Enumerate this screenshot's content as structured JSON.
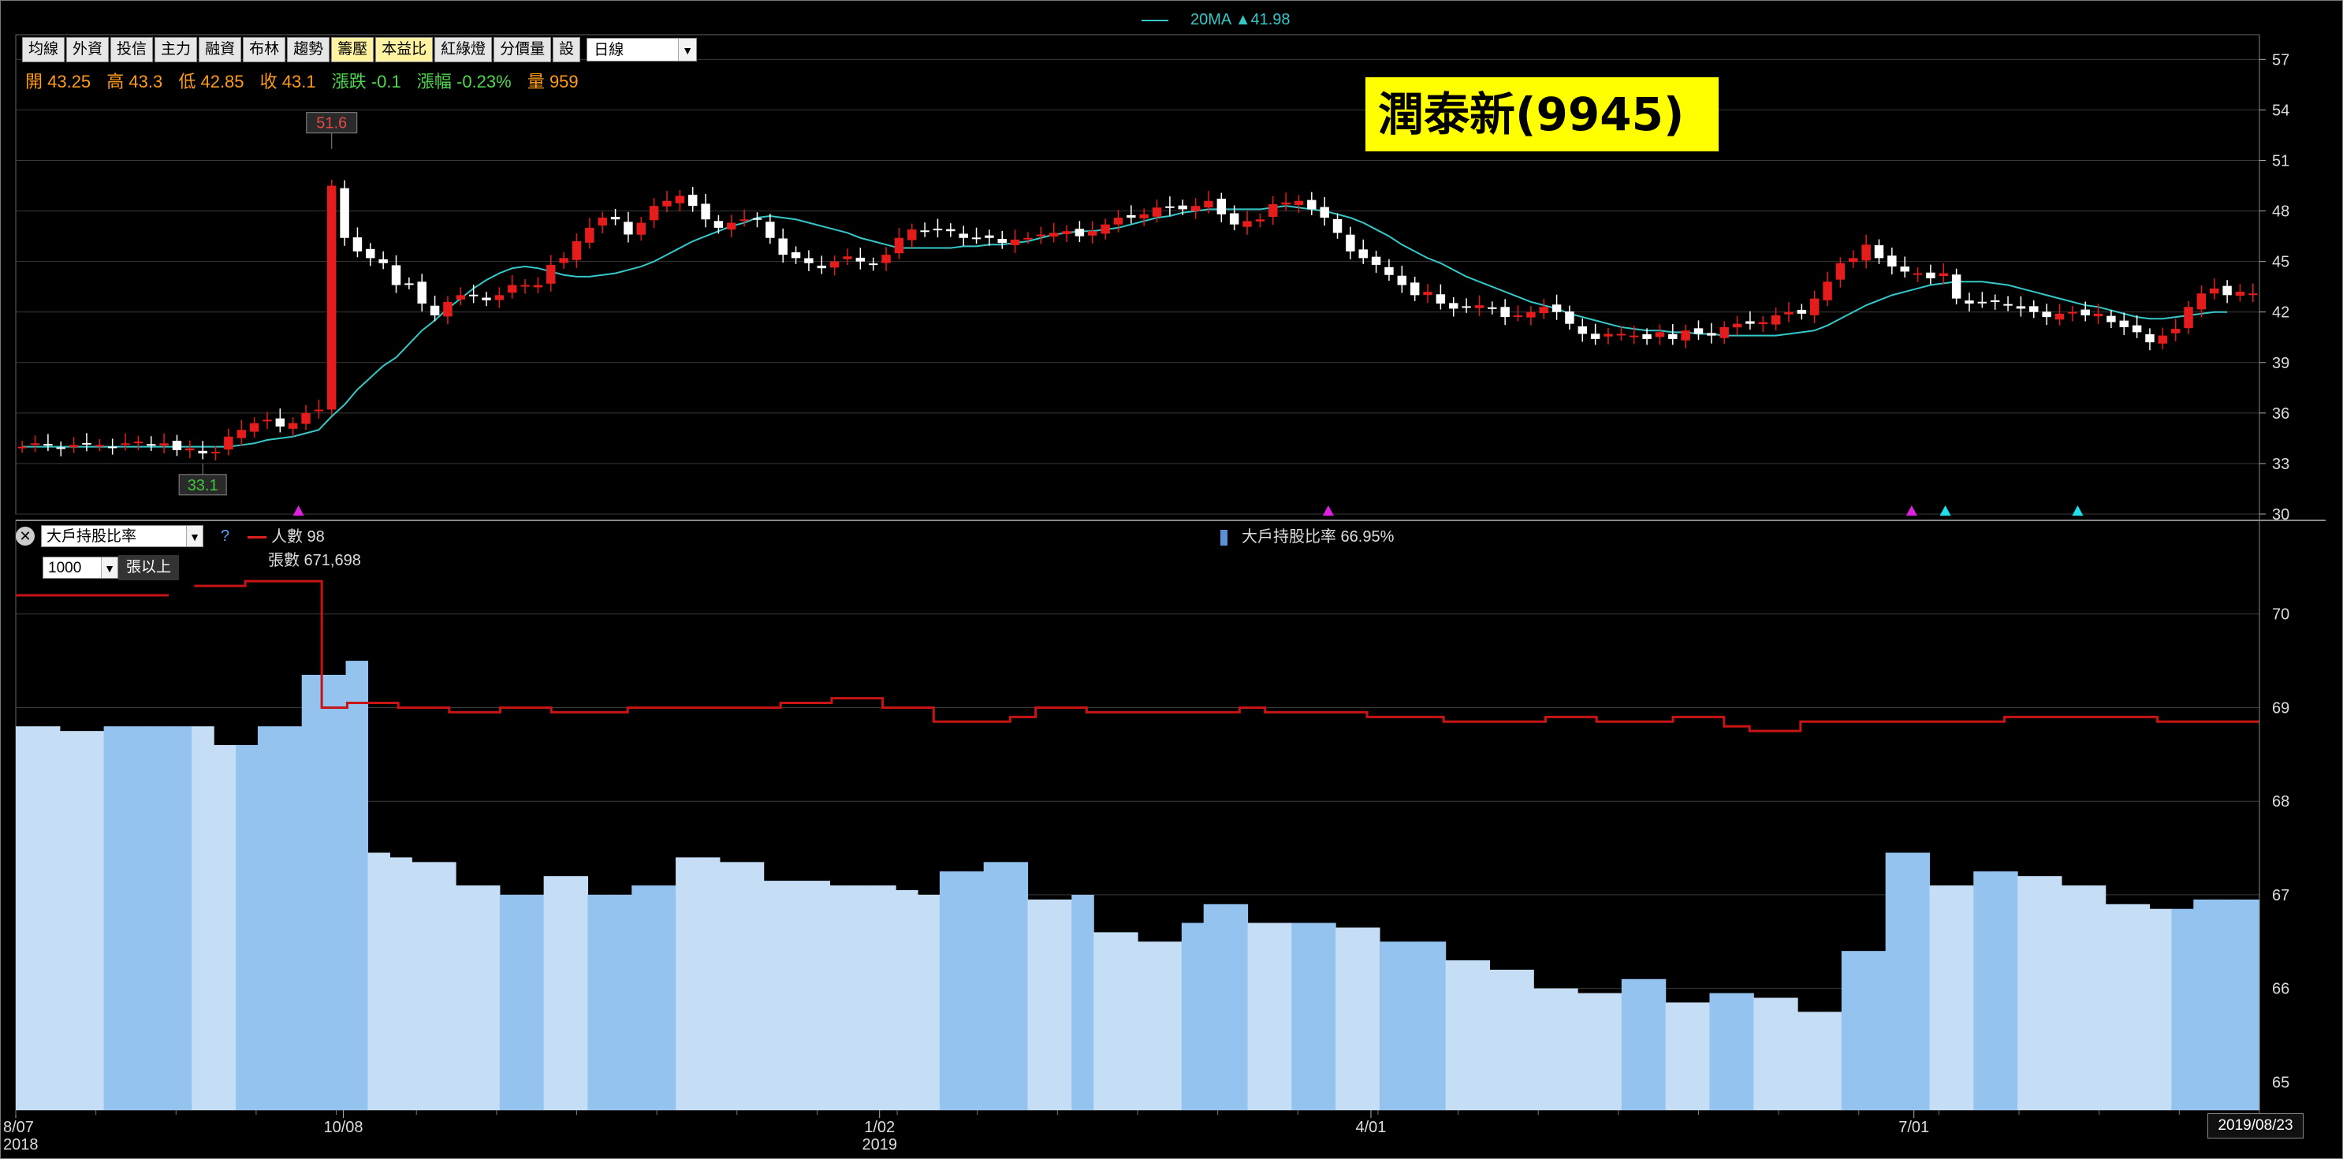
{
  "toolbar": {
    "buttons": [
      "均線",
      "外資",
      "投信",
      "主力",
      "融資",
      "布林",
      "趨勢",
      "籌壓",
      "本益比",
      "紅綠燈",
      "分價量",
      "設"
    ],
    "highlighted": [
      7,
      8
    ],
    "period_select": "日線"
  },
  "ohlc": {
    "open": "開 43.25",
    "high": "高 43.3",
    "low": "低 42.85",
    "close": "收 43.1",
    "change": "漲跌 -0.1",
    "pct": "漲幅 -0.23%",
    "volume": "量 959"
  },
  "ma_legend": "20MA ▲41.98",
  "stock_title": "潤泰新(9945)",
  "max_label": "51.6",
  "min_label": "33.1",
  "lower_panel": {
    "indicator_select": "大戶持股比率",
    "help": "?",
    "threshold_select": "1000",
    "threshold_unit": "張以上",
    "people_legend": "人數 98",
    "shares_legend": "張數 671,698",
    "ratio_legend": "大戶持股比率 66.95%"
  },
  "current_date": "2019/08/23",
  "colors": {
    "up": "#e51c1c",
    "down": "#ffffff",
    "ma": "#36c8c8",
    "bar_light": "#c5ddf5",
    "bar_mid": "#94c3f0",
    "people_line": "#c81414",
    "marker_magenta": "#e020e0",
    "marker_cyan": "#20e0f0",
    "title_bg": "#ffff00"
  },
  "chart_data": [
    {
      "type": "candlestick",
      "y_ticks": [
        30,
        33,
        36,
        39,
        42,
        45,
        48,
        51,
        54,
        57
      ],
      "ylim": [
        30,
        58
      ],
      "x_labels": [
        {
          "label": "8/07",
          "sub": "2018",
          "pos": 0
        },
        {
          "label": "10/08",
          "sub": "",
          "pos": 0.146
        },
        {
          "label": "1/02",
          "sub": "2019",
          "pos": 0.385
        },
        {
          "label": "4/01",
          "sub": "",
          "pos": 0.604
        },
        {
          "label": "7/01",
          "sub": "",
          "pos": 0.846
        }
      ],
      "close_series": [
        34.0,
        34.2,
        34.1,
        33.9,
        34.1,
        34.2,
        34.1,
        34.0,
        34.2,
        34.3,
        34.1,
        34.2,
        33.8,
        33.9,
        33.6,
        33.7,
        34.6,
        35.0,
        35.4,
        35.6,
        35.2,
        35.4,
        36.0,
        36.2,
        49.5,
        46.4,
        45.6,
        45.2,
        44.9,
        43.6,
        43.7,
        42.5,
        41.8,
        42.6,
        43.0,
        43.0,
        42.7,
        43.0,
        43.6,
        43.6,
        43.6,
        44.8,
        45.2,
        46.2,
        47.0,
        47.6,
        47.5,
        46.6,
        47.3,
        48.3,
        48.6,
        48.9,
        48.3,
        47.5,
        47.0,
        47.3,
        47.5,
        47.5,
        46.4,
        45.4,
        45.2,
        44.9,
        44.6,
        45.0,
        45.3,
        45.0,
        44.8,
        45.4,
        46.4,
        46.9,
        46.8,
        46.9,
        46.8,
        46.4,
        46.4,
        46.4,
        46.1,
        46.3,
        46.4,
        46.6,
        46.7,
        46.8,
        46.5,
        46.8,
        47.2,
        47.6,
        47.6,
        47.8,
        48.2,
        48.2,
        48.1,
        48.3,
        48.6,
        47.8,
        47.2,
        47.4,
        47.5,
        48.4,
        48.5,
        48.6,
        48.1,
        47.6,
        46.7,
        45.6,
        45.2,
        44.8,
        44.2,
        43.6,
        43.0,
        43.2,
        42.5,
        42.2,
        42.3,
        42.4,
        42.2,
        41.7,
        41.8,
        42.0,
        42.3,
        42.0,
        41.3,
        40.7,
        40.4,
        40.7,
        40.7,
        40.6,
        40.4,
        40.8,
        40.4,
        40.9,
        40.7,
        40.6,
        41.1,
        41.3,
        41.3,
        41.4,
        41.8,
        42.0,
        41.9,
        42.8,
        43.8,
        44.9,
        45.2,
        46.0,
        45.2,
        44.7,
        44.4,
        44.3,
        44.0,
        44.3,
        42.8,
        42.5,
        42.6,
        42.6,
        42.4,
        42.2,
        42.0,
        41.7,
        41.9,
        42.0,
        41.8,
        41.9,
        41.4,
        41.1,
        40.8,
        40.2,
        40.6,
        41.0,
        42.3,
        43.1,
        43.4,
        43.0,
        43.2,
        43.1
      ]
    },
    {
      "type": "line",
      "name": "20MA",
      "values": [
        34.0,
        34.0,
        34.0,
        34.0,
        34.0,
        34.0,
        34.0,
        34.0,
        34.0,
        34.0,
        34.0,
        34.0,
        34.0,
        34.0,
        34.0,
        34.0,
        34.0,
        34.1,
        34.2,
        34.4,
        34.5,
        34.6,
        34.8,
        35.0,
        35.8,
        36.5,
        37.4,
        38.1,
        38.8,
        39.3,
        40.1,
        40.9,
        41.5,
        42.2,
        42.8,
        43.4,
        43.9,
        44.3,
        44.6,
        44.7,
        44.6,
        44.4,
        44.2,
        44.1,
        44.1,
        44.2,
        44.3,
        44.5,
        44.7,
        45.0,
        45.4,
        45.8,
        46.2,
        46.5,
        46.8,
        47.1,
        47.3,
        47.6,
        47.7,
        47.6,
        47.5,
        47.3,
        47.1,
        46.9,
        46.7,
        46.4,
        46.2,
        46.0,
        45.8,
        45.8,
        45.8,
        45.8,
        45.8,
        45.9,
        45.9,
        46.0,
        46.0,
        46.1,
        46.2,
        46.4,
        46.6,
        46.7,
        46.8,
        46.8,
        46.9,
        47.0,
        47.2,
        47.4,
        47.6,
        47.7,
        47.9,
        48.0,
        48.1,
        48.1,
        48.1,
        48.1,
        48.1,
        48.2,
        48.3,
        48.2,
        48.1,
        48.0,
        47.8,
        47.6,
        47.3,
        46.9,
        46.5,
        46.0,
        45.6,
        45.2,
        44.9,
        44.5,
        44.1,
        43.8,
        43.5,
        43.2,
        42.9,
        42.6,
        42.4,
        42.2,
        41.9,
        41.7,
        41.5,
        41.3,
        41.1,
        41.0,
        40.9,
        40.9,
        40.8,
        40.8,
        40.7,
        40.7,
        40.6,
        40.6,
        40.6,
        40.6,
        40.6,
        40.7,
        40.8,
        40.9,
        41.2,
        41.6,
        42.0,
        42.4,
        42.7,
        43.0,
        43.2,
        43.4,
        43.6,
        43.7,
        43.8,
        43.8,
        43.8,
        43.7,
        43.6,
        43.4,
        43.2,
        43.0,
        42.8,
        42.6,
        42.4,
        42.3,
        42.1,
        41.9,
        41.7,
        41.6,
        41.6,
        41.7,
        41.8,
        41.9,
        42.0,
        42.0
      ]
    },
    {
      "type": "bar",
      "name": "大戶持股比率",
      "y_ticks": [
        65,
        66,
        67,
        68,
        69,
        70
      ],
      "ylim": [
        64.7,
        71.0
      ],
      "weeks": [
        68.8,
        68.8,
        68.75,
        68.75,
        68.8,
        68.8,
        68.8,
        68.8,
        68.8,
        68.6,
        68.6,
        68.8,
        68.8,
        69.35,
        69.35,
        69.5,
        67.45,
        67.4,
        67.35,
        67.35,
        67.1,
        67.1,
        67.0,
        67.0,
        67.2,
        67.2,
        67.0,
        67.0,
        67.1,
        67.1,
        67.4,
        67.4,
        67.35,
        67.35,
        67.15,
        67.15,
        67.15,
        67.1,
        67.1,
        67.1,
        67.05,
        67.0,
        67.25,
        67.25,
        67.35,
        67.35,
        66.95,
        66.95,
        67.0,
        66.6,
        66.6,
        66.5,
        66.5,
        66.7,
        66.9,
        66.9,
        66.7,
        66.7,
        66.7,
        66.7,
        66.65,
        66.65,
        66.5,
        66.5,
        66.5,
        66.3,
        66.3,
        66.2,
        66.2,
        66.0,
        66.0,
        65.95,
        65.95,
        66.1,
        66.1,
        65.85,
        65.85,
        65.95,
        65.95,
        65.9,
        65.9,
        65.75,
        65.75,
        66.4,
        66.4,
        67.45,
        67.45,
        67.1,
        67.1,
        67.25,
        67.25,
        67.2,
        67.2,
        67.1,
        67.1,
        66.9,
        66.9,
        66.85,
        66.85,
        66.95,
        66.95,
        66.95
      ]
    },
    {
      "type": "line",
      "name": "人數",
      "values": [
        70.2,
        70.2,
        70.2,
        70.2,
        70.2,
        70.2,
        null,
        70.3,
        70.3,
        70.35,
        70.35,
        70.35,
        69.0,
        69.05,
        69.05,
        69.0,
        69.0,
        68.95,
        68.95,
        69.0,
        69.0,
        68.95,
        68.95,
        68.95,
        69.0,
        69.0,
        69.0,
        69.0,
        69.0,
        69.0,
        69.05,
        69.05,
        69.1,
        69.1,
        69.0,
        69.0,
        68.85,
        68.85,
        68.85,
        68.9,
        69.0,
        69.0,
        68.95,
        68.95,
        68.95,
        68.95,
        68.95,
        68.95,
        69.0,
        68.95,
        68.95,
        68.95,
        68.95,
        68.9,
        68.9,
        68.9,
        68.85,
        68.85,
        68.85,
        68.85,
        68.9,
        68.9,
        68.85,
        68.85,
        68.85,
        68.9,
        68.9,
        68.8,
        68.75,
        68.75,
        68.85,
        68.85,
        68.85,
        68.85,
        68.85,
        68.85,
        68.85,
        68.85,
        68.9,
        68.9,
        68.9,
        68.9,
        68.9,
        68.9,
        68.85,
        68.85,
        68.85,
        68.85
      ]
    }
  ]
}
